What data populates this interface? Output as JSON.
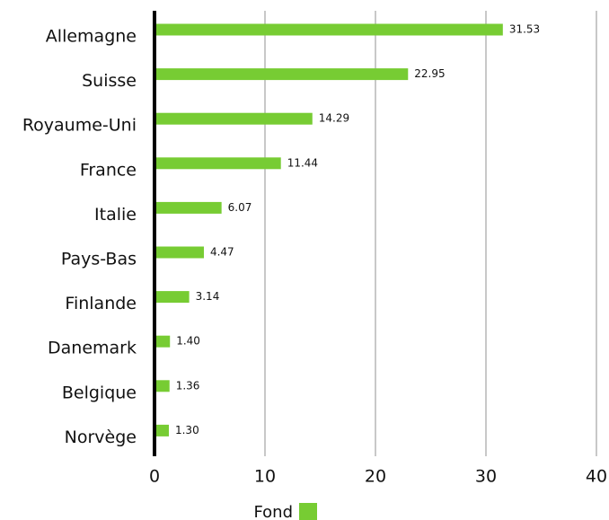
{
  "chart_data": {
    "type": "bar",
    "orientation": "horizontal",
    "categories": [
      "Allemagne",
      "Suisse",
      "Royaume-Uni",
      "France",
      "Italie",
      "Pays-Bas",
      "Finlande",
      "Danemark",
      "Belgique",
      "Norvège"
    ],
    "series": [
      {
        "name": "Fond",
        "values": [
          31.53,
          22.95,
          14.29,
          11.44,
          6.07,
          4.47,
          3.14,
          1.4,
          1.36,
          1.3
        ],
        "value_labels": [
          "31.53",
          "22.95",
          "14.29",
          "11.44",
          "6.07",
          "4.47",
          "3.14",
          "1.40",
          "1.36",
          "1.30"
        ],
        "color": "#77cc33"
      }
    ],
    "x_ticks": [
      "0",
      "10",
      "20",
      "30",
      "40"
    ],
    "xlim": [
      0,
      40
    ],
    "grid": "vertical",
    "legend_position": "bottom",
    "colors": {
      "bar": "#77cc33",
      "grid": "#c8c8c8",
      "axis": "#000000"
    }
  }
}
